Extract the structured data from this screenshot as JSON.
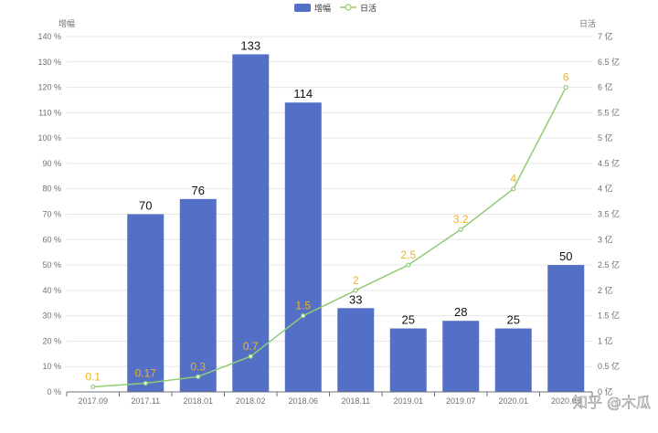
{
  "chart_data": {
    "type": "bar",
    "categories": [
      "2017.09",
      "2017.11",
      "2018.01",
      "2018.02",
      "2018.06",
      "2018.11",
      "2019.01",
      "2019.07",
      "2020.01",
      "2020.08"
    ],
    "series": [
      {
        "name": "增幅",
        "type": "bar",
        "axis": "left",
        "unit": "%",
        "color": "#5470c6",
        "values": [
          null,
          70,
          76,
          133,
          114,
          33,
          25,
          28,
          25,
          50
        ],
        "labels": [
          "",
          "70",
          "76",
          "133",
          "114",
          "33",
          "25",
          "28",
          "25",
          "50"
        ]
      },
      {
        "name": "日活",
        "type": "line",
        "axis": "right",
        "unit": "亿",
        "color": "#91cc75",
        "label_color": "#f2b41c",
        "values": [
          0.1,
          0.17,
          0.3,
          0.7,
          1.5,
          2,
          2.5,
          3.2,
          4,
          6
        ],
        "labels": [
          "0.1",
          "0.17",
          "0.3",
          "0.7",
          "1.5",
          "2",
          "2.5",
          "3.2",
          "4",
          "6"
        ]
      }
    ],
    "y_left": {
      "name": "增幅",
      "min": 0,
      "max": 140,
      "ticks": [
        "0 %",
        "10 %",
        "20 %",
        "30 %",
        "40 %",
        "50 %",
        "60 %",
        "70 %",
        "80 %",
        "90 %",
        "100 %",
        "110 %",
        "120 %",
        "130 %",
        "140 %"
      ]
    },
    "y_right": {
      "name": "日活",
      "min": 0,
      "max": 7,
      "ticks": [
        "0 亿",
        "0.5 亿",
        "1 亿",
        "1.5 亿",
        "2 亿",
        "2.5 亿",
        "3 亿",
        "3.5 亿",
        "4 亿",
        "4.5 亿",
        "5 亿",
        "5.5 亿",
        "6 亿",
        "6.5 亿",
        "7 亿"
      ]
    },
    "grid": true,
    "legend": {
      "position": "top-center",
      "items": [
        "增幅",
        "日活"
      ]
    },
    "watermark": "知乎 @木瓜"
  }
}
